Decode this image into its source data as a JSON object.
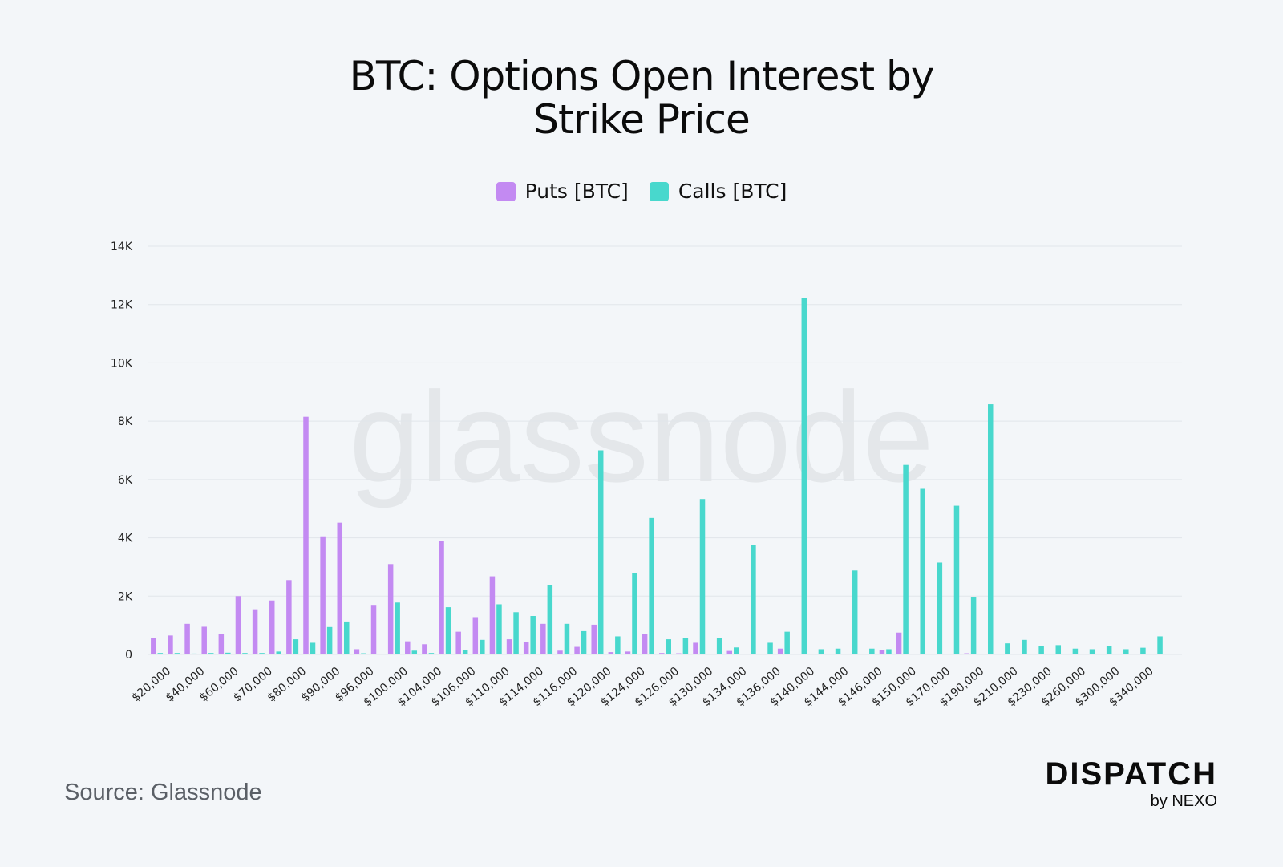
{
  "title_line1": "BTC: Options Open Interest by",
  "title_line2": "Strike Price",
  "source": "Source: Glassnode",
  "brand": {
    "main": "DISPATCH",
    "sub": "by NEXO"
  },
  "watermark": "glassnode",
  "chart_data": {
    "type": "bar",
    "legend": [
      {
        "name": "Puts [BTC]",
        "color": "#c38af2"
      },
      {
        "name": "Calls [BTC]",
        "color": "#48d8cd"
      }
    ],
    "ylim": [
      0,
      14000
    ],
    "y_ticks": [
      {
        "value": 0,
        "label": "0"
      },
      {
        "value": 2000,
        "label": "2K"
      },
      {
        "value": 4000,
        "label": "4K"
      },
      {
        "value": 6000,
        "label": "6K"
      },
      {
        "value": 8000,
        "label": "8K"
      },
      {
        "value": 10000,
        "label": "10K"
      },
      {
        "value": 12000,
        "label": "12K"
      },
      {
        "value": 14000,
        "label": "14K"
      }
    ],
    "x_tick_labels": [
      "$20,000",
      "$40,000",
      "$60,000",
      "$70,000",
      "$80,000",
      "$90,000",
      "$96,000",
      "$100,000",
      "$104,000",
      "$106,000",
      "$110,000",
      "$114,000",
      "$116,000",
      "$120,000",
      "$124,000",
      "$126,000",
      "$130,000",
      "$134,000",
      "$136,000",
      "$140,000",
      "$144,000",
      "$146,000",
      "$150,000",
      "$170,000",
      "$190,000",
      "$210,000",
      "$230,000",
      "$260,000",
      "$300,000",
      "$340,000"
    ],
    "tick_every": 2,
    "puts": [
      550,
      650,
      1050,
      950,
      700,
      2000,
      1550,
      1850,
      2550,
      8150,
      4050,
      4520,
      180,
      1700,
      3100,
      450,
      350,
      3880,
      780,
      1280,
      2680,
      520,
      420,
      1050,
      130,
      260,
      1020,
      80,
      100,
      700,
      50,
      40,
      400,
      20,
      120,
      20,
      20,
      200,
      10,
      10,
      10,
      10,
      10,
      150,
      750,
      20,
      20,
      20,
      40,
      10,
      10,
      10,
      10,
      10,
      10,
      10,
      10,
      10,
      10,
      10,
      10
    ],
    "calls": [
      50,
      50,
      30,
      50,
      60,
      50,
      50,
      100,
      520,
      400,
      940,
      1130,
      40,
      20,
      1780,
      130,
      50,
      1620,
      150,
      500,
      1720,
      1450,
      1320,
      2380,
      1050,
      800,
      7000,
      620,
      2800,
      4680,
      520,
      560,
      5330,
      550,
      240,
      3760,
      400,
      780,
      12230,
      180,
      200,
      2880,
      200,
      180,
      6500,
      5680,
      3150,
      5100,
      1980,
      8580,
      380,
      500,
      300,
      320,
      200,
      180,
      280,
      180,
      230,
      620,
      0
    ]
  }
}
